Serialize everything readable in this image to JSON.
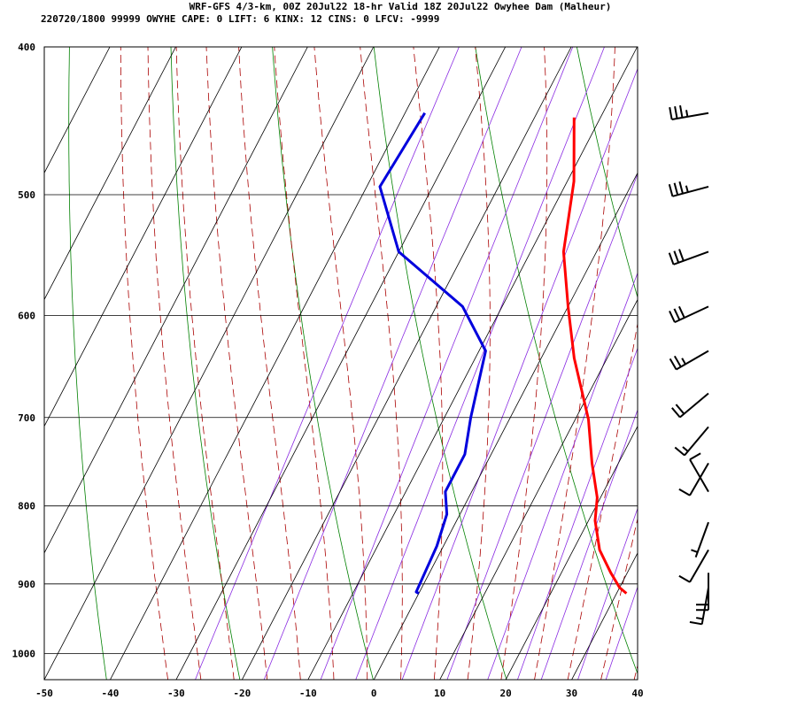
{
  "header": {
    "line1": "WRF-GFS 4/3-km, 00Z 20Jul22 18-hr Valid 18Z 20Jul22 Owyhee Dam (Malheur)",
    "line2": "220720/1800 99999  OWYHE   CAPE:     0 LIFT:     6 KINX:    12 CINS:     0 LFCV: -9999"
  },
  "colors": {
    "temperature": "#ff0000",
    "dewpoint": "#0000dd",
    "isotherm": "#000000",
    "isobar": "#000000",
    "dry_adiabat": "#008000",
    "moist_adiabat": "#aa0000",
    "mixing_ratio": "#8a2be2",
    "wind_barb": "#000000"
  },
  "chart_data": {
    "type": "skew-t",
    "xlim": [
      -50,
      40
    ],
    "ylim": [
      1040,
      400
    ],
    "x_ticks": [
      -50,
      -40,
      -30,
      -20,
      -10,
      0,
      10,
      20,
      30,
      40
    ],
    "y_ticks": [
      400,
      500,
      600,
      700,
      800,
      900,
      1000
    ],
    "y_scale": "log",
    "grid": true,
    "series": [
      {
        "key": "temperature",
        "points": [
          [
            -14,
            445
          ],
          [
            -9,
            490
          ],
          [
            -5,
            545
          ],
          [
            0,
            592
          ],
          [
            5,
            640
          ],
          [
            12,
            702
          ],
          [
            16,
            750
          ],
          [
            19.5,
            790
          ],
          [
            21,
            818
          ],
          [
            24,
            855
          ],
          [
            27.5,
            885
          ],
          [
            30,
            905
          ],
          [
            31.5,
            913
          ]
        ]
      },
      {
        "key": "dewpoint",
        "points": [
          [
            -37,
            442
          ],
          [
            -38,
            494
          ],
          [
            -30,
            545
          ],
          [
            -16,
            592
          ],
          [
            -9,
            633
          ],
          [
            -6,
            700
          ],
          [
            -4,
            740
          ],
          [
            -4,
            783
          ],
          [
            -2,
            810
          ],
          [
            -1,
            850
          ],
          [
            -0.5,
            911
          ],
          [
            0,
            913
          ]
        ]
      }
    ],
    "wind_barbs": [
      {
        "pressure": 442,
        "direction": 260,
        "speed": 35
      },
      {
        "pressure": 494,
        "direction": 255,
        "speed": 35
      },
      {
        "pressure": 545,
        "direction": 250,
        "speed": 30
      },
      {
        "pressure": 592,
        "direction": 245,
        "speed": 30
      },
      {
        "pressure": 633,
        "direction": 240,
        "speed": 25
      },
      {
        "pressure": 675,
        "direction": 230,
        "speed": 20
      },
      {
        "pressure": 710,
        "direction": 220,
        "speed": 15
      },
      {
        "pressure": 750,
        "direction": 210,
        "speed": 10
      },
      {
        "pressure": 783,
        "direction": 330,
        "speed": 10
      },
      {
        "pressure": 820,
        "direction": 200,
        "speed": 5
      },
      {
        "pressure": 855,
        "direction": 210,
        "speed": 10
      },
      {
        "pressure": 885,
        "direction": 180,
        "speed": 20
      },
      {
        "pressure": 905,
        "direction": 190,
        "speed": 15
      }
    ]
  }
}
